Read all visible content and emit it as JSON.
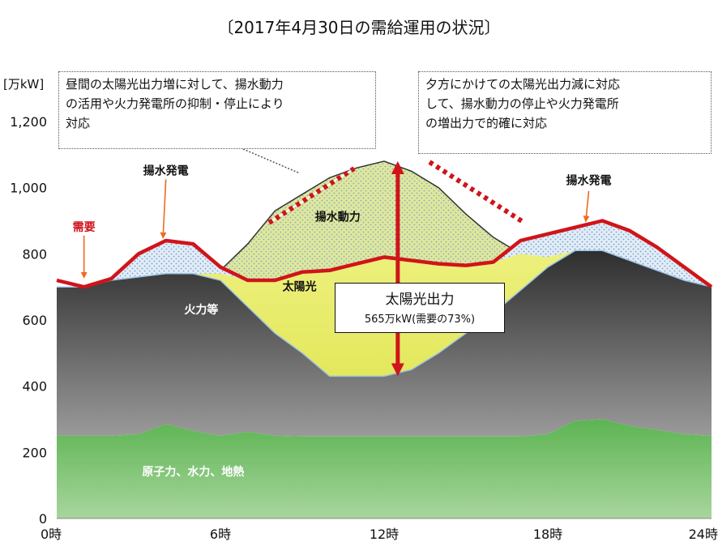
{
  "title": "〔2017年4月30日の需給運用の状況〕",
  "note_left": {
    "lines": [
      "昼間の太陽光出力増に対して、揚水動力",
      "の活用や火力発電所の抑制・停止により",
      "対応"
    ]
  },
  "note_right": {
    "lines": [
      "夕方にかけての太陽光出力減に対応",
      "して、揚水動力の停止や火力発電所",
      "の増出力で的確に対応"
    ]
  },
  "solar_box": {
    "title": "太陽光出力",
    "subtitle": "565万kW(需要の73%)"
  },
  "colors": {
    "baseload": "#4da848",
    "thermal": "#3f3f3f",
    "solar": "#e6eb6a",
    "pumping": "#dfe89a",
    "pumped_gen": "#dde8f4",
    "demand": "#d0141a",
    "arrow": "#d0141a"
  },
  "chart_data": {
    "type": "area",
    "title": "〔2017年4月30日の需給運用の状況〕",
    "ylabel": "[万kW]",
    "xlabel": "",
    "xlim": [
      0,
      24
    ],
    "ylim": [
      0,
      1200
    ],
    "xticks": [
      {
        "value": 0,
        "label": "0時"
      },
      {
        "value": 6,
        "label": "6時"
      },
      {
        "value": 12,
        "label": "12時"
      },
      {
        "value": 18,
        "label": "18時"
      },
      {
        "value": 24,
        "label": "24時"
      }
    ],
    "yticks": [
      {
        "value": 0,
        "label": "0"
      },
      {
        "value": 200,
        "label": "200"
      },
      {
        "value": 400,
        "label": "400"
      },
      {
        "value": 600,
        "label": "600"
      },
      {
        "value": 800,
        "label": "800"
      },
      {
        "value": 1000,
        "label": "1,000"
      },
      {
        "value": 1200,
        "label": "1,200"
      }
    ],
    "x": [
      0,
      1,
      2,
      3,
      4,
      5,
      6,
      7,
      8,
      9,
      10,
      11,
      12,
      13,
      14,
      15,
      16,
      17,
      18,
      19,
      20,
      21,
      22,
      23,
      24
    ],
    "series": [
      {
        "name": "原子力、水力、地熱",
        "values": [
          250,
          250,
          250,
          255,
          285,
          265,
          250,
          262,
          250,
          248,
          248,
          248,
          248,
          248,
          248,
          248,
          248,
          248,
          255,
          295,
          300,
          280,
          268,
          255,
          250
        ]
      },
      {
        "name": "火力等",
        "values": [
          700,
          700,
          720,
          730,
          740,
          740,
          720,
          640,
          560,
          500,
          430,
          430,
          430,
          450,
          500,
          560,
          620,
          690,
          760,
          810,
          810,
          780,
          750,
          720,
          700
        ]
      },
      {
        "name": "太陽光",
        "values": [
          700,
          700,
          720,
          730,
          740,
          740,
          740,
          720,
          720,
          745,
          750,
          770,
          790,
          780,
          770,
          765,
          775,
          800,
          790,
          810,
          810,
          780,
          750,
          720,
          700
        ]
      },
      {
        "name": "揚水動力",
        "values": [
          700,
          700,
          720,
          730,
          740,
          740,
          750,
          830,
          930,
          980,
          1030,
          1060,
          1080,
          1050,
          1000,
          920,
          850,
          800,
          790,
          810,
          810,
          780,
          750,
          720,
          700
        ]
      },
      {
        "name": "揚水発電",
        "values": [
          700,
          700,
          725,
          800,
          840,
          830,
          760,
          720,
          720,
          745,
          750,
          770,
          790,
          780,
          770,
          765,
          775,
          840,
          860,
          880,
          900,
          870,
          820,
          760,
          700
        ]
      },
      {
        "name": "需要",
        "values": [
          720,
          700,
          725,
          800,
          840,
          830,
          760,
          720,
          720,
          745,
          750,
          770,
          790,
          780,
          770,
          765,
          775,
          840,
          860,
          880,
          900,
          870,
          820,
          760,
          700
        ]
      }
    ],
    "labels": [
      {
        "text": "揚水発電",
        "x": 4.0,
        "y": 1040
      },
      {
        "text": "需要",
        "x": 1.0,
        "y": 870
      },
      {
        "text": "揚水動力",
        "x": 10.3,
        "y": 900
      },
      {
        "text": "太陽光",
        "x": 8.9,
        "y": 690
      },
      {
        "text": "火力等",
        "x": 5.3,
        "y": 620
      },
      {
        "text": "原子力、水力、地熱",
        "x": 5.0,
        "y": 130
      },
      {
        "text": "揚水発電",
        "x": 19.5,
        "y": 1010
      }
    ],
    "solar_output": {
      "x": 12.5,
      "from": 430,
      "to": 1080
    }
  }
}
